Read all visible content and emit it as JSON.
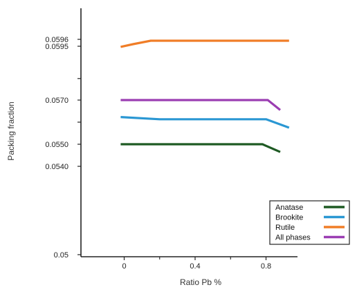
{
  "chart_data": {
    "type": "line",
    "xlabel": "Ratio Pb %",
    "ylabel": "Packing fraction",
    "x_ticks": [
      {
        "value": 0,
        "label": "0"
      },
      {
        "value": 0.4,
        "label": "0.4"
      },
      {
        "value": 0.8,
        "label": "0.8"
      }
    ],
    "y_ticks": [
      {
        "value": 0.05,
        "label": "0.05"
      },
      {
        "value": 0.054,
        "label": "0.0540"
      },
      {
        "value": 0.055,
        "label": "0.0550"
      },
      {
        "value": 0.057,
        "label": "0.0570"
      },
      {
        "value": 0.0595,
        "label": "0.0595"
      },
      {
        "value": 0.0596,
        "label": "0.0596"
      }
    ],
    "xlim": [
      -0.25,
      1.0
    ],
    "ylim": [
      0.05,
      0.0605
    ],
    "grid": false,
    "legend_position": "bottom-right",
    "series": [
      {
        "name": "Anatase",
        "color": "#1e5a23",
        "points": [
          [
            -0.02,
            0.055
          ],
          [
            0.1,
            0.055
          ],
          [
            0.4,
            0.055
          ],
          [
            0.78,
            0.055
          ],
          [
            0.88,
            0.05465
          ]
        ]
      },
      {
        "name": "Brookite",
        "color": "#2a97d3",
        "points": [
          [
            -0.02,
            0.05623
          ],
          [
            0.2,
            0.05613
          ],
          [
            0.5,
            0.05613
          ],
          [
            0.8,
            0.05613
          ],
          [
            0.93,
            0.05575
          ]
        ]
      },
      {
        "name": "Rutile",
        "color": "#f07d27",
        "points": [
          [
            -0.02,
            0.05947
          ],
          [
            0.05,
            0.05953
          ],
          [
            0.15,
            0.05958
          ],
          [
            0.5,
            0.05958
          ],
          [
            0.93,
            0.05958
          ]
        ]
      },
      {
        "name": "All phases",
        "color": "#9b3db2",
        "points": [
          [
            -0.02,
            0.057
          ],
          [
            0.5,
            0.057
          ],
          [
            0.81,
            0.057
          ],
          [
            0.88,
            0.05655
          ]
        ]
      }
    ]
  }
}
